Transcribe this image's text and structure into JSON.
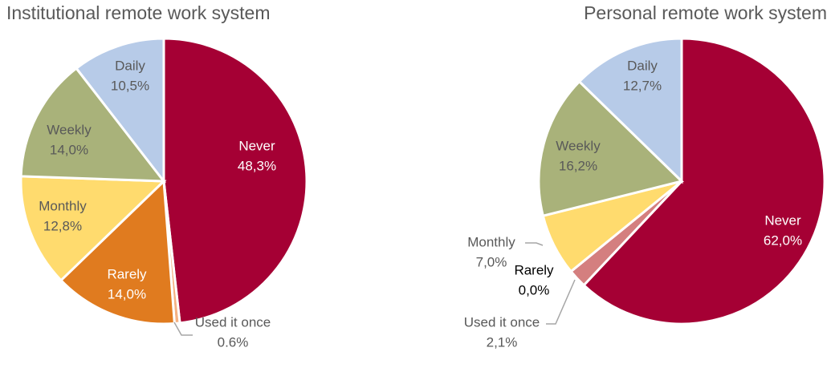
{
  "chart_data": [
    {
      "type": "pie",
      "title": "Institutional remote work system",
      "categories": [
        "Never",
        "Used it once",
        "Rarely",
        "Monthly",
        "Weekly",
        "Daily"
      ],
      "values": [
        48.3,
        0.6,
        14.0,
        12.8,
        14.0,
        10.5
      ],
      "value_labels": [
        "48,3%",
        "0.6%",
        "14,0%",
        "12,8%",
        "14,0%",
        "10,5%"
      ],
      "colors": [
        "#a50034",
        "#f4b183",
        "#e07b1f",
        "#ffdb6e",
        "#a9b27a",
        "#b7cbe8"
      ]
    },
    {
      "type": "pie",
      "title": "Personal remote work system",
      "categories": [
        "Never",
        "Used it once",
        "Rarely",
        "Monthly",
        "Weekly",
        "Daily"
      ],
      "values": [
        62.0,
        2.1,
        0.0,
        7.0,
        16.2,
        12.7
      ],
      "value_labels": [
        "62,0%",
        "2,1%",
        "0,0%",
        "7,0%",
        "16,2%",
        "12,7%"
      ],
      "colors": [
        "#a50034",
        "#d47f7f",
        "#e07b1f",
        "#ffdb6e",
        "#a9b27a",
        "#b7cbe8"
      ]
    }
  ]
}
